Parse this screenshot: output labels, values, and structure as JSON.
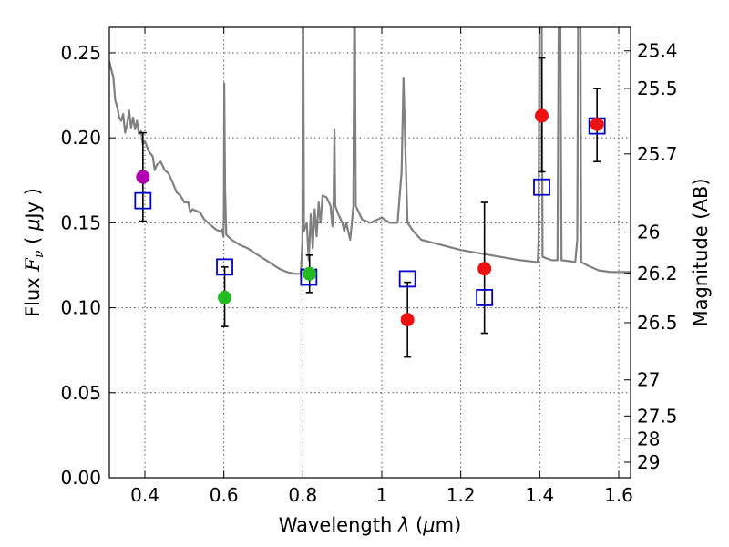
{
  "chart_data": {
    "type": "scatter",
    "xlabel": "Wavelength  λ (μm)",
    "ylabel": "Flux  F_ν  ( μJy )",
    "y2label": "Magnitude (AB)",
    "xlim": [
      0.31,
      1.63
    ],
    "ylim": [
      0.0,
      0.265
    ],
    "xticks": [
      {
        "v": 0.4,
        "label": "0.4"
      },
      {
        "v": 0.6,
        "label": "0.6"
      },
      {
        "v": 0.8,
        "label": "0.8"
      },
      {
        "v": 1.0,
        "label": "1"
      },
      {
        "v": 1.2,
        "label": "1.2"
      },
      {
        "v": 1.4,
        "label": "1.4"
      },
      {
        "v": 1.6,
        "label": "1.6"
      }
    ],
    "yticks": [
      {
        "v": 0.0,
        "label": "0.00"
      },
      {
        "v": 0.05,
        "label": "0.05"
      },
      {
        "v": 0.1,
        "label": "0.10"
      },
      {
        "v": 0.15,
        "label": "0.15"
      },
      {
        "v": 0.2,
        "label": "0.20"
      },
      {
        "v": 0.25,
        "label": "0.25"
      }
    ],
    "y2ticks": [
      {
        "v": 25.4,
        "label": "25.4"
      },
      {
        "v": 25.5,
        "label": "25.5"
      },
      {
        "v": 25.7,
        "label": "25.7"
      },
      {
        "v": 26,
        "label": "26"
      },
      {
        "v": 26.2,
        "label": "26.2"
      },
      {
        "v": 26.5,
        "label": "26.5"
      },
      {
        "v": 27,
        "label": "27"
      },
      {
        "v": 27.5,
        "label": "27.5"
      },
      {
        "v": 28,
        "label": "28"
      },
      {
        "v": 29,
        "label": "29"
      }
    ],
    "grid": true,
    "colors": {
      "template": "#808080",
      "model": "#0000cc",
      "errorbar": "#000000",
      "magenta": "#b000b0",
      "green": "#22bb22",
      "red": "#ee1111"
    },
    "template_spectrum": [
      [
        0.31,
        0.245
      ],
      [
        0.315,
        0.24
      ],
      [
        0.32,
        0.236
      ],
      [
        0.325,
        0.222
      ],
      [
        0.33,
        0.218
      ],
      [
        0.335,
        0.212
      ],
      [
        0.34,
        0.21
      ],
      [
        0.345,
        0.214
      ],
      [
        0.35,
        0.203
      ],
      [
        0.355,
        0.208
      ],
      [
        0.36,
        0.216
      ],
      [
        0.365,
        0.206
      ],
      [
        0.37,
        0.212
      ],
      [
        0.375,
        0.205
      ],
      [
        0.38,
        0.21
      ],
      [
        0.385,
        0.202
      ],
      [
        0.39,
        0.204
      ],
      [
        0.395,
        0.196
      ],
      [
        0.4,
        0.198
      ],
      [
        0.41,
        0.192
      ],
      [
        0.42,
        0.189
      ],
      [
        0.425,
        0.181
      ],
      [
        0.43,
        0.184
      ],
      [
        0.44,
        0.186
      ],
      [
        0.45,
        0.181
      ],
      [
        0.46,
        0.179
      ],
      [
        0.47,
        0.174
      ],
      [
        0.48,
        0.168
      ],
      [
        0.49,
        0.166
      ],
      [
        0.5,
        0.162
      ],
      [
        0.51,
        0.162
      ],
      [
        0.515,
        0.156
      ],
      [
        0.52,
        0.158
      ],
      [
        0.53,
        0.157
      ],
      [
        0.54,
        0.156
      ],
      [
        0.55,
        0.152
      ],
      [
        0.56,
        0.15
      ],
      [
        0.57,
        0.148
      ],
      [
        0.58,
        0.146
      ],
      [
        0.59,
        0.145
      ],
      [
        0.595,
        0.146
      ],
      [
        0.599,
        0.142
      ],
      [
        0.6,
        0.158
      ],
      [
        0.601,
        0.232
      ],
      [
        0.603,
        0.17
      ],
      [
        0.606,
        0.143
      ],
      [
        0.62,
        0.14
      ],
      [
        0.64,
        0.137
      ],
      [
        0.66,
        0.135
      ],
      [
        0.68,
        0.132
      ],
      [
        0.7,
        0.129
      ],
      [
        0.72,
        0.126
      ],
      [
        0.74,
        0.123
      ],
      [
        0.76,
        0.121
      ],
      [
        0.78,
        0.12
      ],
      [
        0.795,
        0.12
      ],
      [
        0.799,
        0.14
      ],
      [
        0.8,
        0.265
      ],
      [
        0.801,
        0.265
      ],
      [
        0.803,
        0.145
      ],
      [
        0.81,
        0.15
      ],
      [
        0.815,
        0.128
      ],
      [
        0.82,
        0.155
      ],
      [
        0.825,
        0.135
      ],
      [
        0.83,
        0.158
      ],
      [
        0.835,
        0.142
      ],
      [
        0.84,
        0.162
      ],
      [
        0.845,
        0.15
      ],
      [
        0.85,
        0.166
      ],
      [
        0.86,
        0.165
      ],
      [
        0.87,
        0.16
      ],
      [
        0.875,
        0.148
      ],
      [
        0.878,
        0.162
      ],
      [
        0.88,
        0.205
      ],
      [
        0.882,
        0.16
      ],
      [
        0.89,
        0.155
      ],
      [
        0.9,
        0.15
      ],
      [
        0.905,
        0.145
      ],
      [
        0.91,
        0.15
      ],
      [
        0.92,
        0.14
      ],
      [
        0.925,
        0.152
      ],
      [
        0.928,
        0.16
      ],
      [
        0.93,
        0.265
      ],
      [
        0.932,
        0.265
      ],
      [
        0.934,
        0.16
      ],
      [
        0.95,
        0.152
      ],
      [
        0.97,
        0.15
      ],
      [
        1.0,
        0.153
      ],
      [
        1.02,
        0.15
      ],
      [
        1.04,
        0.15
      ],
      [
        1.05,
        0.18
      ],
      [
        1.055,
        0.235
      ],
      [
        1.06,
        0.19
      ],
      [
        1.065,
        0.15
      ],
      [
        1.08,
        0.145
      ],
      [
        1.1,
        0.14
      ],
      [
        1.15,
        0.137
      ],
      [
        1.2,
        0.134
      ],
      [
        1.25,
        0.132
      ],
      [
        1.3,
        0.13
      ],
      [
        1.35,
        0.128
      ],
      [
        1.39,
        0.127
      ],
      [
        1.395,
        0.127
      ],
      [
        1.397,
        0.14
      ],
      [
        1.399,
        0.265
      ],
      [
        1.405,
        0.265
      ],
      [
        1.407,
        0.13
      ],
      [
        1.43,
        0.128
      ],
      [
        1.445,
        0.128
      ],
      [
        1.448,
        0.265
      ],
      [
        1.452,
        0.265
      ],
      [
        1.455,
        0.128
      ],
      [
        1.49,
        0.127
      ],
      [
        1.495,
        0.14
      ],
      [
        1.497,
        0.265
      ],
      [
        1.503,
        0.265
      ],
      [
        1.505,
        0.127
      ],
      [
        1.52,
        0.125
      ],
      [
        1.55,
        0.122
      ],
      [
        1.58,
        0.121
      ],
      [
        1.6,
        0.121
      ],
      [
        1.63,
        0.121
      ]
    ],
    "model_points": [
      {
        "x": 0.395,
        "y": 0.163
      },
      {
        "x": 0.602,
        "y": 0.124
      },
      {
        "x": 0.815,
        "y": 0.118
      },
      {
        "x": 1.065,
        "y": 0.117
      },
      {
        "x": 1.26,
        "y": 0.106
      },
      {
        "x": 1.405,
        "y": 0.171
      },
      {
        "x": 1.545,
        "y": 0.207
      }
    ],
    "observed_points": [
      {
        "x": 0.395,
        "y": 0.177,
        "err_lo": 0.151,
        "err_hi": 0.203,
        "color": "magenta"
      },
      {
        "x": 0.602,
        "y": 0.106,
        "err_lo": 0.089,
        "err_hi": 0.124,
        "color": "green"
      },
      {
        "x": 0.817,
        "y": 0.12,
        "err_lo": 0.109,
        "err_hi": 0.131,
        "color": "green"
      },
      {
        "x": 1.065,
        "y": 0.093,
        "err_lo": 0.071,
        "err_hi": 0.115,
        "color": "red"
      },
      {
        "x": 1.26,
        "y": 0.123,
        "err_lo": 0.085,
        "err_hi": 0.162,
        "color": "red"
      },
      {
        "x": 1.405,
        "y": 0.213,
        "err_lo": 0.18,
        "err_hi": 0.247,
        "color": "red"
      },
      {
        "x": 1.545,
        "y": 0.208,
        "err_lo": 0.186,
        "err_hi": 0.229,
        "color": "red"
      }
    ]
  }
}
